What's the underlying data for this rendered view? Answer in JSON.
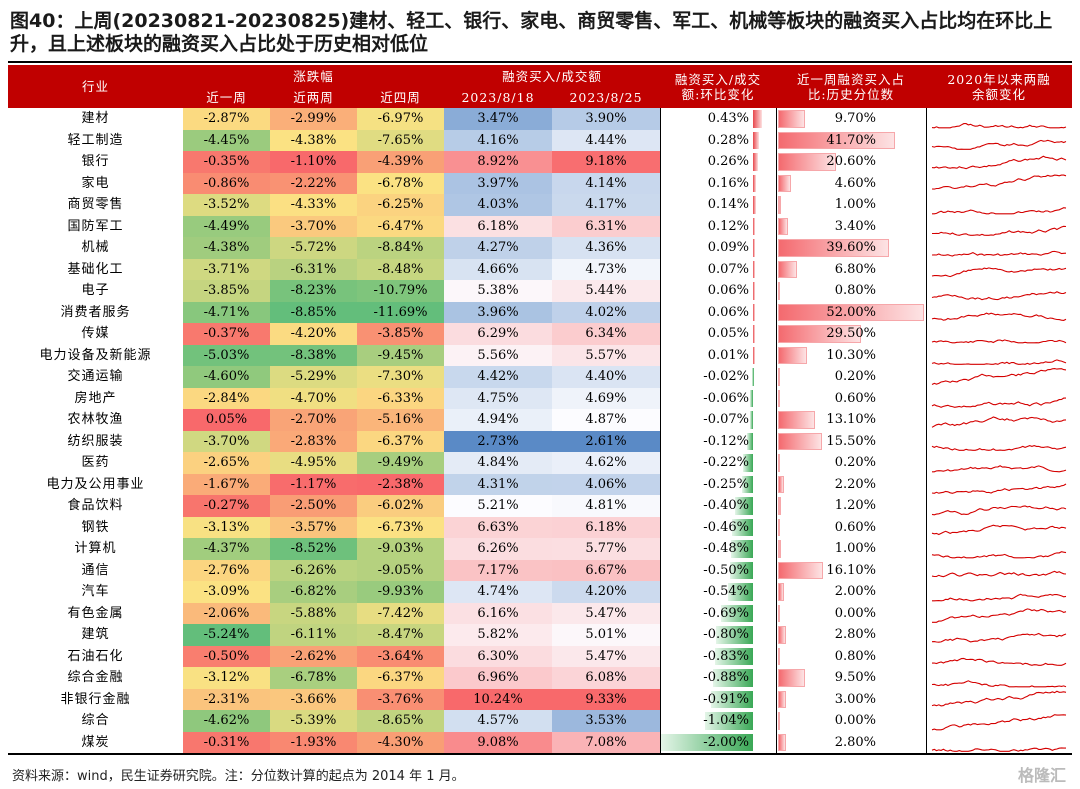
{
  "title": "图40：上周(20230821-20230825)建材、轻工、银行、家电、商贸零售、军工、机械等板块的融资买入占比均在环比上升，且上述板块的融资买入占比处于历史相对低位",
  "header": {
    "industry": "行业",
    "change_group": "涨跌幅",
    "w1": "近一周",
    "w2": "近两周",
    "w4": "近四周",
    "ratio_group": "融资买入/成交额",
    "d1": "2023/8/18",
    "d2": "2023/8/25",
    "chg": "融资买入/成交\n额:环比变化",
    "pct": "近一周融资买入占\n比:历史分位数",
    "spark": "2020年以来两融\n余额变化"
  },
  "chart_data": {
    "type": "table",
    "columns": [
      "行业",
      "近一周",
      "近两周",
      "近四周",
      "2023/8/18",
      "2023/8/25",
      "融资买入/成交额:环比变化",
      "近一周融资买入占比:历史分位数"
    ],
    "rows": [
      [
        "建材",
        "-2.87%",
        "-2.99%",
        "-6.97%",
        "3.47%",
        "3.90%",
        "0.43%",
        "9.70%"
      ],
      [
        "轻工制造",
        "-4.45%",
        "-4.38%",
        "-7.65%",
        "4.16%",
        "4.44%",
        "0.28%",
        "41.70%"
      ],
      [
        "银行",
        "-0.35%",
        "-1.10%",
        "-4.39%",
        "8.92%",
        "9.18%",
        "0.26%",
        "20.60%"
      ],
      [
        "家电",
        "-0.86%",
        "-2.22%",
        "-6.78%",
        "3.97%",
        "4.14%",
        "0.16%",
        "4.60%"
      ],
      [
        "商贸零售",
        "-3.52%",
        "-4.33%",
        "-6.25%",
        "4.03%",
        "4.17%",
        "0.14%",
        "1.00%"
      ],
      [
        "国防军工",
        "-4.49%",
        "-3.70%",
        "-6.47%",
        "6.18%",
        "6.31%",
        "0.12%",
        "3.40%"
      ],
      [
        "机械",
        "-4.38%",
        "-5.72%",
        "-8.84%",
        "4.27%",
        "4.36%",
        "0.09%",
        "39.60%"
      ],
      [
        "基础化工",
        "-3.71%",
        "-6.31%",
        "-8.48%",
        "4.66%",
        "4.73%",
        "0.07%",
        "6.80%"
      ],
      [
        "电子",
        "-3.85%",
        "-8.23%",
        "-10.79%",
        "5.38%",
        "5.44%",
        "0.06%",
        "0.80%"
      ],
      [
        "消费者服务",
        "-4.71%",
        "-8.85%",
        "-11.69%",
        "3.96%",
        "4.02%",
        "0.06%",
        "52.00%"
      ],
      [
        "传媒",
        "-0.37%",
        "-4.20%",
        "-3.85%",
        "6.29%",
        "6.34%",
        "0.05%",
        "29.50%"
      ],
      [
        "电力设备及新能源",
        "-5.03%",
        "-8.38%",
        "-9.45%",
        "5.56%",
        "5.57%",
        "0.01%",
        "10.30%"
      ],
      [
        "交通运输",
        "-4.60%",
        "-5.29%",
        "-7.30%",
        "4.42%",
        "4.40%",
        "-0.02%",
        "0.20%"
      ],
      [
        "房地产",
        "-2.84%",
        "-4.70%",
        "-6.33%",
        "4.75%",
        "4.69%",
        "-0.06%",
        "0.60%"
      ],
      [
        "农林牧渔",
        "0.05%",
        "-2.70%",
        "-5.16%",
        "4.94%",
        "4.87%",
        "-0.07%",
        "13.10%"
      ],
      [
        "纺织服装",
        "-3.70%",
        "-2.83%",
        "-6.37%",
        "2.73%",
        "2.61%",
        "-0.12%",
        "15.50%"
      ],
      [
        "医药",
        "-2.65%",
        "-4.95%",
        "-9.49%",
        "4.84%",
        "4.62%",
        "-0.22%",
        "0.20%"
      ],
      [
        "电力及公用事业",
        "-1.67%",
        "-1.17%",
        "-2.38%",
        "4.31%",
        "4.06%",
        "-0.25%",
        "2.20%"
      ],
      [
        "食品饮料",
        "-0.27%",
        "-2.50%",
        "-6.02%",
        "5.21%",
        "4.81%",
        "-0.40%",
        "1.20%"
      ],
      [
        "钢铁",
        "-3.13%",
        "-3.57%",
        "-6.73%",
        "6.63%",
        "6.18%",
        "-0.46%",
        "0.60%"
      ],
      [
        "计算机",
        "-4.37%",
        "-8.52%",
        "-9.03%",
        "6.26%",
        "5.77%",
        "-0.48%",
        "1.00%"
      ],
      [
        "通信",
        "-2.76%",
        "-6.26%",
        "-9.05%",
        "7.17%",
        "6.67%",
        "-0.50%",
        "16.10%"
      ],
      [
        "汽车",
        "-3.09%",
        "-6.82%",
        "-9.93%",
        "4.74%",
        "4.20%",
        "-0.54%",
        "2.00%"
      ],
      [
        "有色金属",
        "-2.06%",
        "-5.88%",
        "-7.42%",
        "6.16%",
        "5.47%",
        "-0.69%",
        "0.00%"
      ],
      [
        "建筑",
        "-5.24%",
        "-6.11%",
        "-8.47%",
        "5.82%",
        "5.01%",
        "-0.80%",
        "2.80%"
      ],
      [
        "石油石化",
        "-0.50%",
        "-2.62%",
        "-3.64%",
        "6.30%",
        "5.47%",
        "-0.83%",
        "0.80%"
      ],
      [
        "综合金融",
        "-3.12%",
        "-6.78%",
        "-6.37%",
        "6.96%",
        "6.08%",
        "-0.88%",
        "9.50%"
      ],
      [
        "非银行金融",
        "-2.31%",
        "-3.66%",
        "-3.76%",
        "10.24%",
        "9.33%",
        "-0.91%",
        "3.00%"
      ],
      [
        "综合",
        "-4.62%",
        "-5.39%",
        "-8.65%",
        "4.57%",
        "3.53%",
        "-1.04%",
        "0.00%"
      ],
      [
        "煤炭",
        "-0.31%",
        "-1.93%",
        "-4.30%",
        "9.08%",
        "7.08%",
        "-2.00%",
        "2.80%"
      ]
    ]
  },
  "colors": {
    "header_bg": "#c00000",
    "pos_bar": "#e8474c",
    "neg_bar": "#3aa856",
    "sparkline": "#d40000"
  },
  "footer": {
    "note": "资料来源：wind，民生证券研究院。注：分位数计算的起点为 2014 年 1 月。",
    "watermark": "格隆汇"
  }
}
